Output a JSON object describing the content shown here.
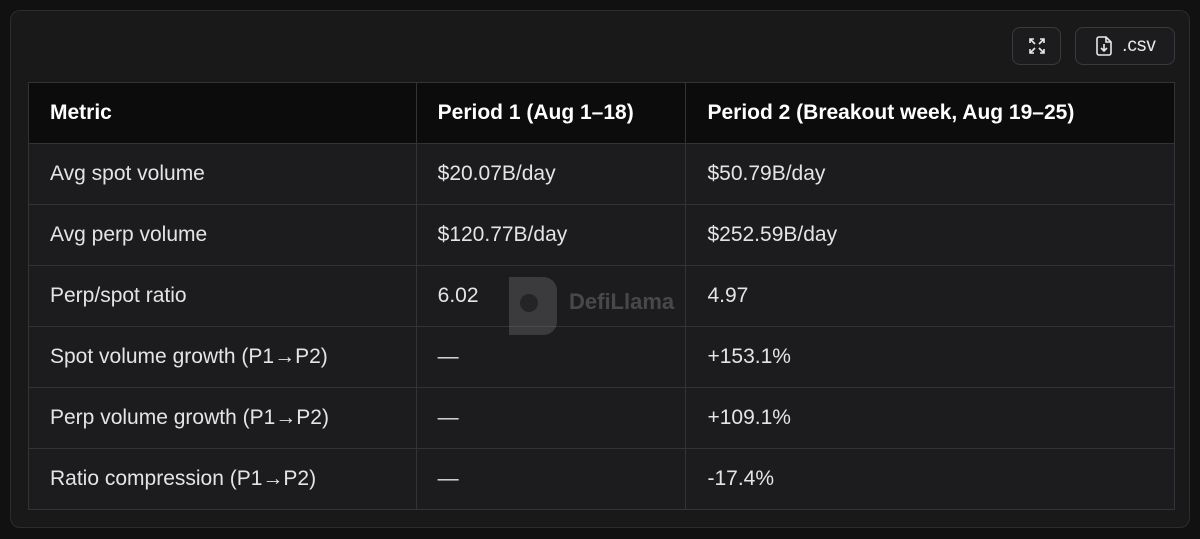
{
  "toolbar": {
    "csv_button": ".csv"
  },
  "table": {
    "columns": [
      "Metric",
      "Period 1 (Aug 1–18)",
      "Period 2 (Breakout week, Aug 19–25)"
    ],
    "rows": [
      [
        "Avg spot volume",
        "$20.07B/day",
        "$50.79B/day"
      ],
      [
        "Avg perp volume",
        "$120.77B/day",
        "$252.59B/day"
      ],
      [
        "Perp/spot ratio",
        "6.02",
        "4.97"
      ],
      [
        "Spot volume growth (P1→P2)",
        "—",
        "+153.1%"
      ],
      [
        "Perp volume growth (P1→P2)",
        "—",
        "+109.1%"
      ],
      [
        "Ratio compression (P1→P2)",
        "—",
        "-17.4%"
      ]
    ]
  },
  "watermark": "DefiLlama"
}
